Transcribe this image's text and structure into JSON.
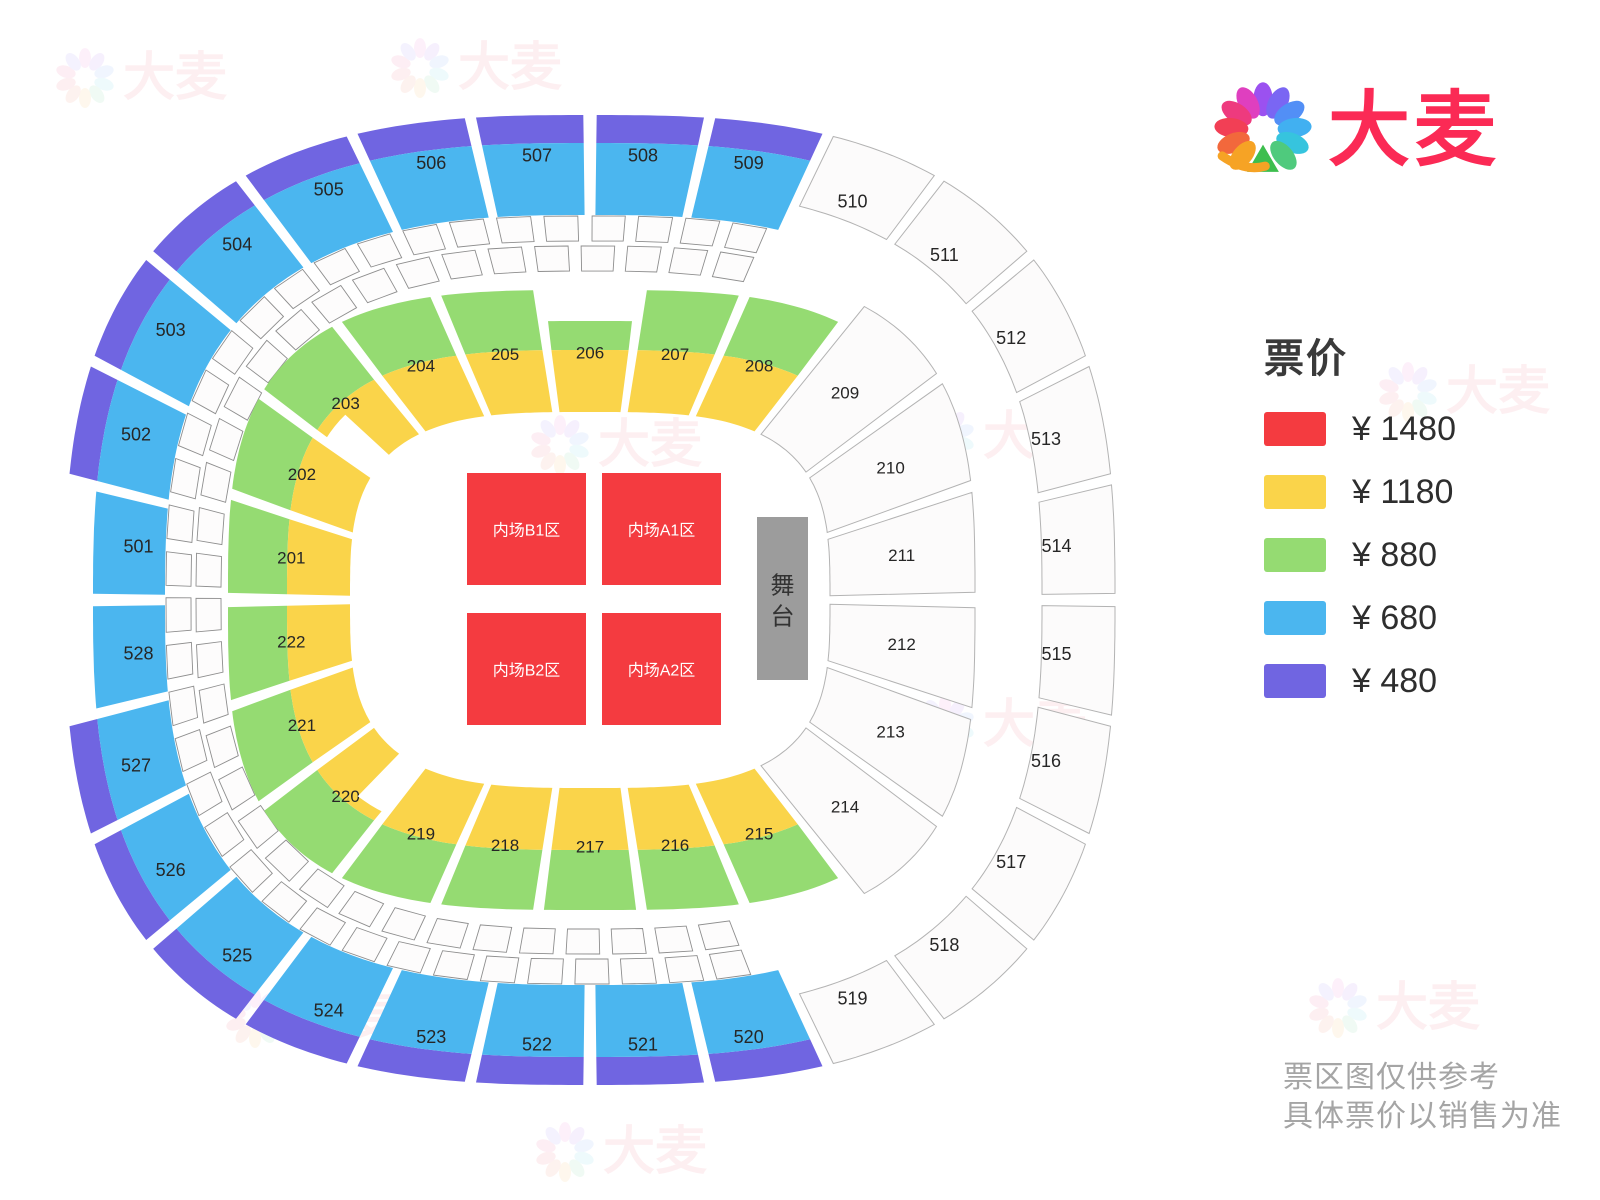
{
  "brand": {
    "name": "大麦",
    "logo_color": "#FB2A55"
  },
  "legend": {
    "title": "票价",
    "items": [
      {
        "color": "#F43B40",
        "label": "¥ 1480"
      },
      {
        "color": "#FAD44A",
        "label": "¥ 1180"
      },
      {
        "color": "#95DB72",
        "label": "¥ 880"
      },
      {
        "color": "#4BB6EF",
        "label": "¥ 680"
      },
      {
        "color": "#7065E1",
        "label": "¥ 480"
      }
    ]
  },
  "footer": {
    "line1": "票区图仅供参考",
    "line2": "具体票价以销售为准"
  },
  "floor": {
    "stage_label": "舞台",
    "stage_color": "#9C9C9C",
    "zone_color": "#F43B40",
    "zones": [
      {
        "id": "B1",
        "label": "内场B1区"
      },
      {
        "id": "A1",
        "label": "内场A1区"
      },
      {
        "id": "B2",
        "label": "内场B2区"
      },
      {
        "id": "A2",
        "label": "内场A2区"
      }
    ]
  },
  "colors": {
    "edge_band": "#7065E1",
    "bowl_blue": "#4BB6EF",
    "ring_green": "#95DB72",
    "ring_yellow": "#FAD44A",
    "white_fill": "#FCFBFB",
    "white_stroke": "#B3B3B3",
    "box_stroke": "#8E8E8E",
    "section_label": "#262626",
    "watermark": "#E8485F"
  },
  "rings": {
    "outer": {
      "sections": [
        {
          "label": "501",
          "style": "blue-noedge"
        },
        {
          "label": "502",
          "style": "blue"
        },
        {
          "label": "503",
          "style": "blue"
        },
        {
          "label": "504",
          "style": "blue"
        },
        {
          "label": "505",
          "style": "blue"
        },
        {
          "label": "506",
          "style": "blue"
        },
        {
          "label": "507",
          "style": "blue"
        },
        {
          "label": "508",
          "style": "blue"
        },
        {
          "label": "509",
          "style": "blue"
        },
        {
          "label": "510",
          "style": "white"
        },
        {
          "label": "511",
          "style": "white"
        },
        {
          "label": "512",
          "style": "white"
        },
        {
          "label": "513",
          "style": "white"
        },
        {
          "label": "514",
          "style": "white"
        },
        {
          "label": "515",
          "style": "white"
        },
        {
          "label": "516",
          "style": "white"
        },
        {
          "label": "517",
          "style": "white"
        },
        {
          "label": "518",
          "style": "white"
        },
        {
          "label": "519",
          "style": "white"
        },
        {
          "label": "520",
          "style": "blue"
        },
        {
          "label": "521",
          "style": "blue"
        },
        {
          "label": "522",
          "style": "blue"
        },
        {
          "label": "523",
          "style": "blue"
        },
        {
          "label": "524",
          "style": "blue"
        },
        {
          "label": "525",
          "style": "blue"
        },
        {
          "label": "526",
          "style": "blue"
        },
        {
          "label": "527",
          "style": "blue"
        },
        {
          "label": "528",
          "style": "blue-noedge"
        }
      ]
    },
    "inner": {
      "sections": [
        {
          "label": "201",
          "style": "colored"
        },
        {
          "label": "202",
          "style": "colored"
        },
        {
          "label": "203",
          "style": "colored"
        },
        {
          "label": "204",
          "style": "colored"
        },
        {
          "label": "205",
          "style": "colored"
        },
        {
          "label": "206",
          "style": "colored-short"
        },
        {
          "label": "207",
          "style": "colored"
        },
        {
          "label": "208",
          "style": "colored"
        },
        {
          "label": "209",
          "style": "white"
        },
        {
          "label": "210",
          "style": "white"
        },
        {
          "label": "211",
          "style": "white"
        },
        {
          "label": "212",
          "style": "white"
        },
        {
          "label": "213",
          "style": "white"
        },
        {
          "label": "214",
          "style": "white"
        },
        {
          "label": "215",
          "style": "colored"
        },
        {
          "label": "216",
          "style": "colored"
        },
        {
          "label": "217",
          "style": "colored"
        },
        {
          "label": "218",
          "style": "colored"
        },
        {
          "label": "219",
          "style": "colored"
        },
        {
          "label": "220",
          "style": "colored"
        },
        {
          "label": "221",
          "style": "colored"
        },
        {
          "label": "222",
          "style": "colored"
        }
      ]
    }
  }
}
